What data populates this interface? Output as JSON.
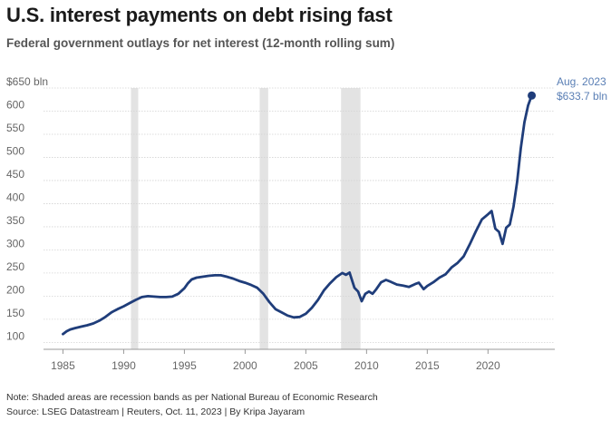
{
  "header": {
    "title": "U.S. interest payments on debt rising fast",
    "subtitle": "Federal government outlays for net interest (12-month rolling sum)"
  },
  "footer": {
    "note": "Note: Shaded areas are recession bands as per National Bureau of Economic Research",
    "source": "Source: LSEG Datastream | Reuters, Oct. 11, 2023 | By Kripa Jayaram"
  },
  "chart_data": {
    "type": "line",
    "title": "U.S. interest payments on debt rising fast",
    "subtitle": "Federal government outlays for net interest (12-month rolling sum)",
    "xlabel": "",
    "ylabel": "",
    "xlim": [
      1983.4,
      2025.5
    ],
    "ylim": [
      85,
      650
    ],
    "grid": true,
    "x_ticks": [
      1985,
      1990,
      1995,
      2000,
      2005,
      2010,
      2015,
      2020
    ],
    "x_tick_labels": [
      "1985",
      "1990",
      "1995",
      "2000",
      "2005",
      "2010",
      "2015",
      "2020"
    ],
    "y_ticks": [
      100,
      150,
      200,
      250,
      300,
      350,
      400,
      450,
      500,
      550,
      600,
      650
    ],
    "y_tick_labels": [
      "100",
      "150",
      "200",
      "250",
      "300",
      "350",
      "400",
      "450",
      "500",
      "550",
      "600",
      "$650 bln"
    ],
    "recessions": [
      [
        1990.6,
        1991.2
      ],
      [
        2001.2,
        2001.9
      ],
      [
        2007.9,
        2009.5
      ]
    ],
    "series": [
      {
        "name": "",
        "color": "#1f3d7a",
        "x": [
          1985.0,
          1985.3,
          1985.6,
          1986.0,
          1986.5,
          1987.0,
          1987.5,
          1988.0,
          1988.5,
          1989.0,
          1989.5,
          1990.0,
          1990.5,
          1991.0,
          1991.5,
          1992.0,
          1992.5,
          1993.0,
          1993.5,
          1994.0,
          1994.5,
          1995.0,
          1995.3,
          1995.6,
          1996.0,
          1996.5,
          1997.0,
          1997.5,
          1998.0,
          1998.5,
          1999.0,
          1999.5,
          2000.0,
          2000.5,
          2001.0,
          2001.5,
          2002.0,
          2002.5,
          2003.0,
          2003.5,
          2004.0,
          2004.5,
          2005.0,
          2005.5,
          2006.0,
          2006.5,
          2007.0,
          2007.5,
          2008.0,
          2008.3,
          2008.6,
          2009.0,
          2009.3,
          2009.6,
          2009.9,
          2010.2,
          2010.5,
          2010.8,
          2011.2,
          2011.6,
          2012.0,
          2012.5,
          2013.0,
          2013.5,
          2014.0,
          2014.3,
          2014.7,
          2015.0,
          2015.5,
          2016.0,
          2016.5,
          2017.0,
          2017.5,
          2018.0,
          2018.5,
          2019.0,
          2019.5,
          2020.0,
          2020.3,
          2020.6,
          2020.9,
          2021.2,
          2021.5,
          2021.8,
          2022.1,
          2022.4,
          2022.7,
          2023.0,
          2023.3,
          2023.6
        ],
        "values": [
          118,
          124,
          128,
          131,
          134,
          137,
          141,
          147,
          155,
          165,
          172,
          178,
          185,
          192,
          198,
          200,
          199,
          198,
          198,
          199,
          205,
          217,
          228,
          236,
          240,
          242,
          244,
          245,
          245,
          242,
          238,
          233,
          229,
          224,
          218,
          205,
          187,
          172,
          165,
          158,
          154,
          155,
          162,
          175,
          192,
          213,
          228,
          241,
          250,
          246,
          251,
          218,
          210,
          189,
          205,
          210,
          205,
          215,
          230,
          235,
          231,
          225,
          223,
          220,
          226,
          229,
          215,
          222,
          230,
          240,
          247,
          262,
          272,
          286,
          312,
          340,
          366,
          377,
          384,
          346,
          339,
          313,
          348,
          355,
          394,
          448,
          520,
          576,
          612,
          633.7
        ]
      }
    ],
    "annotations": [
      {
        "x": 2023.6,
        "y": 633.7,
        "lines": [
          "Aug. 2023",
          "$633.7 bln"
        ]
      }
    ]
  }
}
